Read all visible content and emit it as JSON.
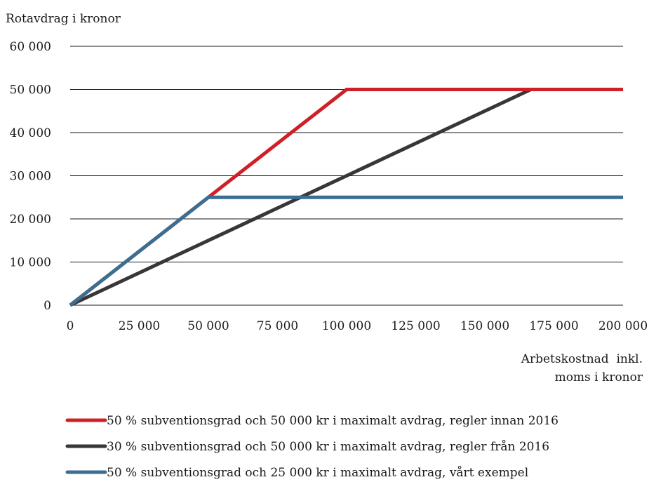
{
  "chart_data": {
    "type": "line",
    "ylabel": "Rotavdrag i kronor",
    "xlabel": [
      "Arbetskostnad  inkl.",
      "moms i kronor"
    ],
    "xlim": [
      0,
      200000
    ],
    "ylim": [
      0,
      60000
    ],
    "x_ticks": [
      0,
      25000,
      50000,
      75000,
      100000,
      125000,
      150000,
      175000,
      200000
    ],
    "x_tick_labels": [
      "0",
      "25 000",
      "50 000",
      "75 000",
      "100 000",
      "125 000",
      "150 000",
      "175 000",
      "200 000"
    ],
    "y_ticks": [
      0,
      10000,
      20000,
      30000,
      40000,
      50000,
      60000
    ],
    "y_tick_labels": [
      "0",
      "10 000",
      "20 000",
      "30 000",
      "40 000",
      "50 000",
      "60 000"
    ],
    "grid": "horizontal",
    "legend_position": "bottom",
    "series": [
      {
        "name": "50 % subventionsgrad och 50 000 kr i maximalt avdrag, regler innan 2016",
        "color": "#d02027",
        "points": [
          [
            0,
            0
          ],
          [
            100000,
            50000
          ],
          [
            200000,
            50000
          ]
        ]
      },
      {
        "name": "30 % subventionsgrad och 50 000 kr i maximalt avdrag, regler från 2016",
        "color": "#3a3536",
        "points": [
          [
            0,
            0
          ],
          [
            166667,
            50000
          ],
          [
            200000,
            50000
          ]
        ]
      },
      {
        "name": "50 % subventionsgrad och 25 000 kr i maximalt avdrag, vårt exempel",
        "color": "#3b6e93",
        "points": [
          [
            0,
            0
          ],
          [
            50000,
            25000
          ],
          [
            200000,
            25000
          ]
        ]
      }
    ]
  }
}
